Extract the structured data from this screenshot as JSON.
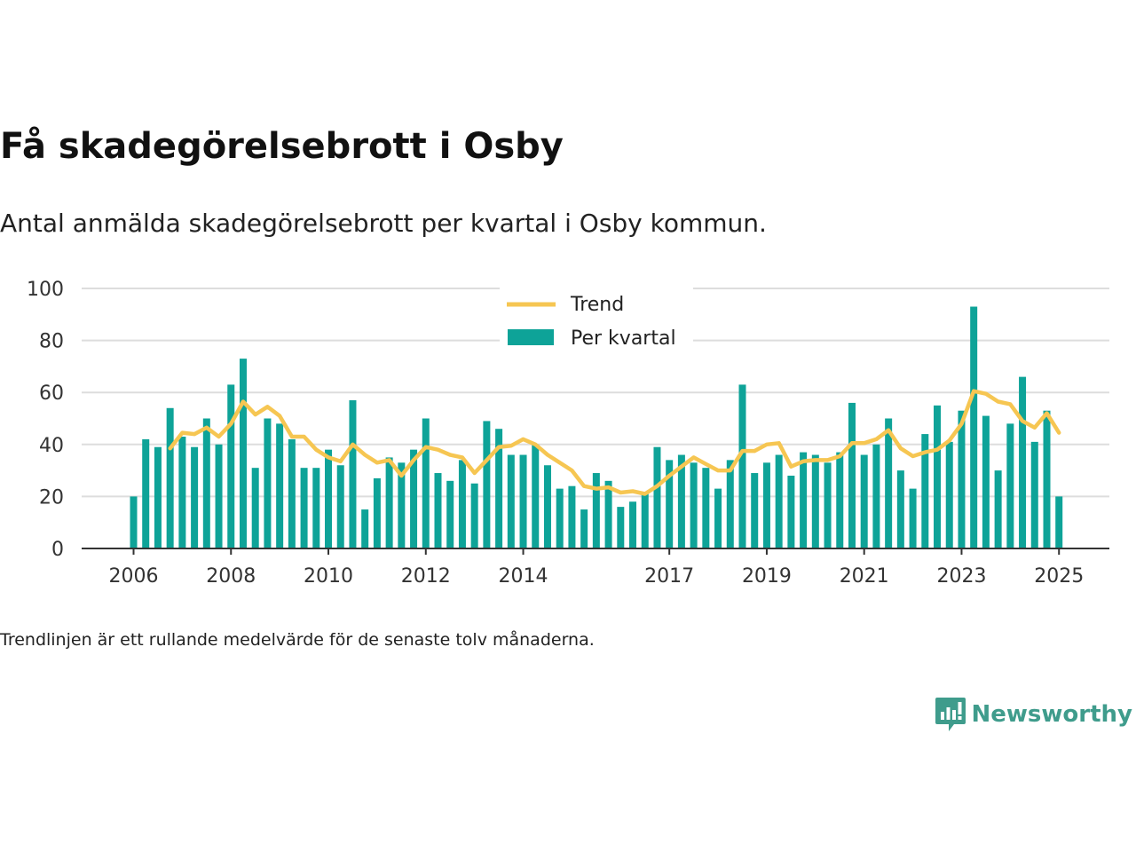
{
  "title": "Få skadegörelsebrott i Osby",
  "subtitle": "Antal anmälda skadegörelsebrott per kvartal i Osby kommun.",
  "footnote": "Trendlinjen är ett rullande medelvärde för de senaste tolv månaderna.",
  "brand": {
    "name": "Newsworthy",
    "icon": "newsworthy-logo-icon",
    "color": "#3f9c8c"
  },
  "colors": {
    "bars": "#0ea398",
    "trend": "#f6c652",
    "grid": "#dddddd",
    "axis": "#333333"
  },
  "chart_data": {
    "type": "bar",
    "x_start": "2006 Q1",
    "ylim": [
      0,
      100
    ],
    "y_ticks": [
      0,
      20,
      40,
      60,
      80,
      100
    ],
    "x_tick_labels": [
      "2006",
      "2008",
      "2010",
      "2012",
      "2014",
      "2017",
      "2019",
      "2021",
      "2023",
      "2025"
    ],
    "x_tick_years": [
      2006,
      2008,
      2010,
      2012,
      2014,
      2017,
      2019,
      2021,
      2023,
      2025
    ],
    "legend": {
      "position": "top-center",
      "entries": [
        "Trend",
        "Per kvartal"
      ]
    },
    "grid": true,
    "series": [
      {
        "name": "Per kvartal",
        "type": "bar",
        "values": [
          20,
          42,
          39,
          54,
          43,
          39,
          50,
          40,
          63,
          73,
          31,
          50,
          48,
          42,
          31,
          31,
          38,
          32,
          57,
          15,
          27,
          35,
          33,
          38,
          50,
          29,
          26,
          34,
          25,
          49,
          46,
          36,
          36,
          40,
          32,
          23,
          24,
          15,
          29,
          26,
          16,
          18,
          21,
          39,
          34,
          36,
          33,
          31,
          23,
          34,
          63,
          29,
          33,
          36,
          28,
          37,
          36,
          33,
          37,
          56,
          36,
          40,
          50,
          30,
          23,
          44,
          55,
          41,
          53,
          93,
          51,
          30,
          48,
          66,
          41,
          53,
          20
        ]
      },
      {
        "name": "Trend",
        "type": "line",
        "values": [
          null,
          null,
          null,
          38.5,
          44.5,
          44,
          46.5,
          43,
          48,
          56.5,
          51.5,
          54.5,
          51,
          43,
          43,
          38,
          35,
          33.5,
          40,
          36,
          33,
          34,
          28,
          34,
          39,
          38,
          36,
          35,
          29,
          34,
          39,
          39.5,
          42,
          40,
          36,
          33,
          30,
          24,
          23,
          23.5,
          21.5,
          22,
          21,
          24,
          28,
          31.5,
          35,
          32.5,
          30,
          30,
          37.5,
          37.5,
          40,
          40.5,
          31.5,
          33.5,
          34,
          34,
          35.5,
          40.5,
          40.5,
          42,
          45.5,
          38.5,
          35.5,
          37,
          38,
          41.5,
          48,
          60.5,
          59.5,
          56.5,
          55.5,
          49,
          46.5,
          52,
          44.5
        ]
      }
    ]
  }
}
